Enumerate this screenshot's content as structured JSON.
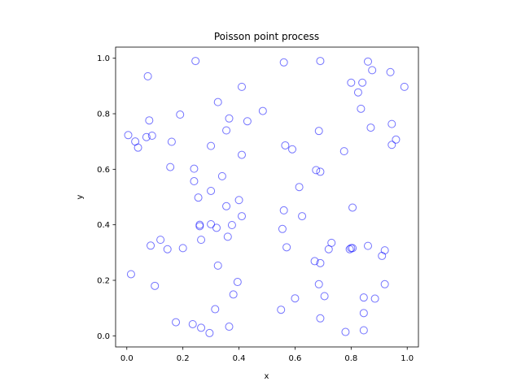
{
  "chart_data": {
    "type": "scatter",
    "title": "Poisson point process",
    "xlabel": "x",
    "ylabel": "y",
    "xlim": [
      -0.04,
      1.04
    ],
    "ylim": [
      -0.04,
      1.04
    ],
    "xticks": [
      0.0,
      0.2,
      0.4,
      0.6,
      0.8,
      1.0
    ],
    "yticks": [
      0.0,
      0.2,
      0.4,
      0.6,
      0.8,
      1.0
    ],
    "xtick_labels": [
      "0.0",
      "0.2",
      "0.4",
      "0.6",
      "0.8",
      "1.0"
    ],
    "ytick_labels": [
      "0.0",
      "0.2",
      "0.4",
      "0.6",
      "0.8",
      "1.0"
    ],
    "grid": false,
    "marker": "hollow-circle",
    "marker_color": "#0000ff",
    "points": [
      [
        0.245,
        0.99
      ],
      [
        0.56,
        0.985
      ],
      [
        0.69,
        0.99
      ],
      [
        0.86,
        0.988
      ],
      [
        0.075,
        0.935
      ],
      [
        0.41,
        0.897
      ],
      [
        0.8,
        0.912
      ],
      [
        0.84,
        0.912
      ],
      [
        0.875,
        0.957
      ],
      [
        0.94,
        0.95
      ],
      [
        0.99,
        0.897
      ],
      [
        0.825,
        0.877
      ],
      [
        0.325,
        0.842
      ],
      [
        0.485,
        0.81
      ],
      [
        0.835,
        0.818
      ],
      [
        0.19,
        0.797
      ],
      [
        0.365,
        0.783
      ],
      [
        0.43,
        0.773
      ],
      [
        0.08,
        0.776
      ],
      [
        0.87,
        0.75
      ],
      [
        0.945,
        0.763
      ],
      [
        0.355,
        0.74
      ],
      [
        0.685,
        0.738
      ],
      [
        0.005,
        0.723
      ],
      [
        0.09,
        0.721
      ],
      [
        0.07,
        0.716
      ],
      [
        0.03,
        0.7
      ],
      [
        0.16,
        0.699
      ],
      [
        0.04,
        0.678
      ],
      [
        0.96,
        0.707
      ],
      [
        0.945,
        0.688
      ],
      [
        0.3,
        0.684
      ],
      [
        0.565,
        0.686
      ],
      [
        0.59,
        0.672
      ],
      [
        0.775,
        0.665
      ],
      [
        0.41,
        0.652
      ],
      [
        0.155,
        0.608
      ],
      [
        0.24,
        0.602
      ],
      [
        0.675,
        0.597
      ],
      [
        0.69,
        0.591
      ],
      [
        0.34,
        0.575
      ],
      [
        0.24,
        0.557
      ],
      [
        0.615,
        0.536
      ],
      [
        0.3,
        0.522
      ],
      [
        0.255,
        0.498
      ],
      [
        0.4,
        0.489
      ],
      [
        0.355,
        0.467
      ],
      [
        0.805,
        0.462
      ],
      [
        0.56,
        0.452
      ],
      [
        0.41,
        0.431
      ],
      [
        0.625,
        0.431
      ],
      [
        0.26,
        0.4
      ],
      [
        0.26,
        0.395
      ],
      [
        0.3,
        0.402
      ],
      [
        0.375,
        0.399
      ],
      [
        0.32,
        0.389
      ],
      [
        0.555,
        0.385
      ],
      [
        0.265,
        0.346
      ],
      [
        0.36,
        0.357
      ],
      [
        0.12,
        0.346
      ],
      [
        0.085,
        0.325
      ],
      [
        0.145,
        0.312
      ],
      [
        0.2,
        0.316
      ],
      [
        0.57,
        0.319
      ],
      [
        0.73,
        0.335
      ],
      [
        0.72,
        0.312
      ],
      [
        0.795,
        0.312
      ],
      [
        0.8,
        0.316
      ],
      [
        0.805,
        0.316
      ],
      [
        0.86,
        0.324
      ],
      [
        0.92,
        0.308
      ],
      [
        0.91,
        0.288
      ],
      [
        0.67,
        0.269
      ],
      [
        0.69,
        0.262
      ],
      [
        0.325,
        0.253
      ],
      [
        0.015,
        0.222
      ],
      [
        0.395,
        0.194
      ],
      [
        0.1,
        0.18
      ],
      [
        0.685,
        0.186
      ],
      [
        0.92,
        0.186
      ],
      [
        0.38,
        0.149
      ],
      [
        0.6,
        0.135
      ],
      [
        0.705,
        0.143
      ],
      [
        0.845,
        0.138
      ],
      [
        0.885,
        0.134
      ],
      [
        0.315,
        0.096
      ],
      [
        0.55,
        0.094
      ],
      [
        0.845,
        0.082
      ],
      [
        0.69,
        0.063
      ],
      [
        0.175,
        0.049
      ],
      [
        0.235,
        0.042
      ],
      [
        0.265,
        0.029
      ],
      [
        0.365,
        0.033
      ],
      [
        0.295,
        0.01
      ],
      [
        0.78,
        0.014
      ],
      [
        0.845,
        0.02
      ]
    ]
  }
}
